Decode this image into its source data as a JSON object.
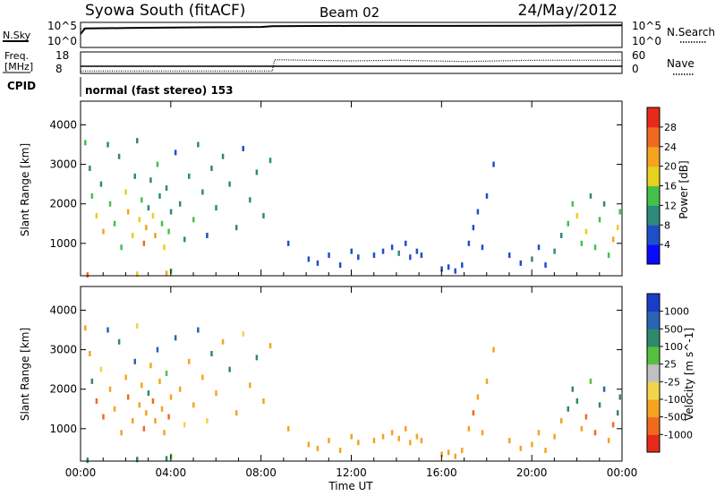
{
  "header": {
    "station": "Syowa South (fitACF)",
    "beam": "Beam 02",
    "date": "24/May/2012"
  },
  "sky_panel": {
    "left_label": "N.Sky",
    "right_label": "N.Search",
    "tick_top_left": "10^5",
    "tick_bottom_left": "10^0",
    "tick_top_right": "10^5",
    "tick_bottom_right": "10^0"
  },
  "freq_panel": {
    "left_label_1": "Freq.",
    "left_label_2": "[MHz]",
    "right_label": "Nave",
    "tick_top_left": "18",
    "tick_bottom_left": "8",
    "tick_top_right": "60",
    "tick_bottom_right": "0"
  },
  "cpid": {
    "label": "CPID",
    "value": "normal (fast stereo) 153"
  },
  "x_axis": {
    "label": "Time UT",
    "ticks": [
      "00:00",
      "04:00",
      "08:00",
      "12:00",
      "16:00",
      "20:00",
      "00:00"
    ]
  },
  "power_panel": {
    "ylabel": "Slant Range [km]",
    "yticks": [
      "1000",
      "2000",
      "3000",
      "4000"
    ],
    "colorbar_label": "Power [dB]",
    "colorbar_ticks": [
      "4",
      "8",
      "12",
      "16",
      "20",
      "24",
      "28"
    ],
    "colorbar_colors": [
      "#0a0aff",
      "#1f4fc8",
      "#2d8a7d",
      "#45c04a",
      "#e6d020",
      "#f5a321",
      "#ef6a1f",
      "#e52a1a"
    ]
  },
  "velocity_panel": {
    "ylabel": "Slant Range [km]",
    "yticks": [
      "1000",
      "2000",
      "3000",
      "4000"
    ],
    "colorbar_label": "Velocity [m s^-1]",
    "colorbar_ticks": [
      "1000",
      "500",
      "100",
      "25",
      "-25",
      "-100",
      "-500",
      "-1000"
    ],
    "colorbar_colors": [
      "#1a3cc8",
      "#2a64b4",
      "#2d8a6a",
      "#57c040",
      "#c0c0c0",
      "#f2d44a",
      "#f5a321",
      "#ef6a1f",
      "#e52a1a"
    ]
  },
  "chart_data": [
    {
      "type": "line",
      "name": "sky_noise_and_search_noise",
      "x_unit": "hours UT",
      "xlim": [
        0,
        24
      ],
      "series": [
        {
          "name": "N.Sky",
          "x": [
            0,
            0.2,
            2,
            4,
            6,
            8,
            8.5,
            12,
            16,
            20,
            24
          ],
          "y": [
            0.55,
            0.8,
            0.82,
            0.84,
            0.86,
            0.87,
            0.91,
            0.92,
            0.92,
            0.93,
            0.95
          ]
        },
        {
          "name": "N.Search",
          "x": [
            0,
            0.2,
            4,
            8,
            8.5,
            12,
            16,
            20,
            24
          ],
          "y": [
            0.78,
            0.8,
            0.83,
            0.86,
            0.9,
            0.9,
            0.92,
            0.93,
            0.95
          ]
        }
      ]
    },
    {
      "type": "line",
      "name": "frequency_and_nave",
      "x_unit": "hours UT",
      "xlim": [
        0,
        24
      ],
      "series": [
        {
          "name": "Freq. [MHz]",
          "x": [
            0,
            24
          ],
          "y": [
            11,
            11
          ]
        },
        {
          "name": "Nave",
          "x": [
            0,
            8.5,
            8.6,
            12,
            14,
            17,
            18.5,
            20,
            24
          ],
          "y": [
            2,
            2,
            40,
            36,
            38,
            34,
            36,
            38,
            38
          ]
        }
      ]
    },
    {
      "type": "heatmap",
      "name": "power_rti",
      "x_unit": "hours UT",
      "y_unit": "km",
      "xlim": [
        0,
        24
      ],
      "ylim": [
        180,
        4600
      ],
      "clim": [
        0,
        30
      ],
      "points": [
        [
          0.2,
          3550,
          12
        ],
        [
          0.4,
          2900,
          10
        ],
        [
          0.5,
          2200,
          14
        ],
        [
          0.7,
          1700,
          18
        ],
        [
          0.9,
          2500,
          9
        ],
        [
          1.0,
          1300,
          20
        ],
        [
          1.2,
          3500,
          8
        ],
        [
          1.3,
          2000,
          15
        ],
        [
          1.5,
          1500,
          12
        ],
        [
          1.7,
          3200,
          10
        ],
        [
          1.8,
          900,
          14
        ],
        [
          2.0,
          2300,
          17
        ],
        [
          2.1,
          1800,
          22
        ],
        [
          2.3,
          1200,
          16
        ],
        [
          2.4,
          2700,
          11
        ],
        [
          2.5,
          3600,
          9
        ],
        [
          2.6,
          1600,
          19
        ],
        [
          2.7,
          2100,
          13
        ],
        [
          2.8,
          1000,
          24
        ],
        [
          2.9,
          1400,
          20
        ],
        [
          3.0,
          1900,
          11
        ],
        [
          3.1,
          2600,
          8
        ],
        [
          3.2,
          1700,
          17
        ],
        [
          3.3,
          1200,
          21
        ],
        [
          3.4,
          3000,
          12
        ],
        [
          3.5,
          2200,
          10
        ],
        [
          3.6,
          1500,
          15
        ],
        [
          3.7,
          900,
          18
        ],
        [
          3.8,
          2400,
          9
        ],
        [
          3.9,
          1300,
          13
        ],
        [
          4.0,
          1800,
          10
        ],
        [
          4.2,
          3300,
          7
        ],
        [
          4.4,
          2000,
          11
        ],
        [
          4.6,
          1100,
          8
        ],
        [
          4.8,
          2700,
          9
        ],
        [
          5.0,
          1600,
          12
        ],
        [
          5.2,
          3500,
          8
        ],
        [
          5.4,
          2300,
          10
        ],
        [
          5.6,
          1200,
          7
        ],
        [
          5.8,
          2900,
          9
        ],
        [
          6.0,
          1900,
          11
        ],
        [
          6.3,
          3200,
          8
        ],
        [
          6.6,
          2500,
          10
        ],
        [
          6.9,
          1400,
          9
        ],
        [
          7.2,
          3400,
          7
        ],
        [
          7.5,
          2100,
          8
        ],
        [
          7.8,
          2800,
          10
        ],
        [
          8.1,
          1700,
          9
        ],
        [
          8.4,
          3100,
          8
        ],
        [
          0.3,
          200,
          26
        ],
        [
          2.5,
          220,
          18
        ],
        [
          3.8,
          240,
          22
        ],
        [
          4.0,
          300,
          14
        ],
        [
          9.2,
          1000,
          6
        ],
        [
          10.1,
          600,
          5
        ],
        [
          10.5,
          500,
          4
        ],
        [
          11.0,
          700,
          6
        ],
        [
          11.5,
          450,
          5
        ],
        [
          12.0,
          800,
          7
        ],
        [
          12.3,
          650,
          6
        ],
        [
          13.0,
          700,
          5
        ],
        [
          13.4,
          800,
          6
        ],
        [
          13.8,
          900,
          7
        ],
        [
          14.1,
          750,
          8
        ],
        [
          14.4,
          1000,
          6
        ],
        [
          14.6,
          650,
          5
        ],
        [
          14.9,
          800,
          6
        ],
        [
          15.1,
          700,
          7
        ],
        [
          16.0,
          350,
          6
        ],
        [
          16.3,
          400,
          5
        ],
        [
          16.6,
          300,
          7
        ],
        [
          16.9,
          450,
          6
        ],
        [
          17.2,
          1000,
          5
        ],
        [
          17.4,
          1400,
          6
        ],
        [
          17.6,
          1800,
          7
        ],
        [
          17.8,
          900,
          5
        ],
        [
          18.0,
          2200,
          6
        ],
        [
          18.3,
          3000,
          5
        ],
        [
          19.0,
          700,
          7
        ],
        [
          19.5,
          500,
          6
        ],
        [
          20.0,
          600,
          8
        ],
        [
          20.3,
          900,
          7
        ],
        [
          20.6,
          450,
          6
        ],
        [
          21.0,
          800,
          9
        ],
        [
          21.3,
          1200,
          10
        ],
        [
          21.6,
          1500,
          12
        ],
        [
          21.8,
          2000,
          14
        ],
        [
          22.0,
          1700,
          16
        ],
        [
          22.2,
          1000,
          13
        ],
        [
          22.4,
          1300,
          18
        ],
        [
          22.6,
          2200,
          11
        ],
        [
          22.8,
          900,
          15
        ],
        [
          23.0,
          1600,
          12
        ],
        [
          23.2,
          2000,
          9
        ],
        [
          23.4,
          700,
          14
        ],
        [
          23.6,
          1100,
          22
        ],
        [
          23.8,
          1400,
          19
        ],
        [
          23.9,
          1800,
          13
        ]
      ]
    },
    {
      "type": "heatmap",
      "name": "velocity_rti",
      "x_unit": "hours UT",
      "y_unit": "km",
      "xlim": [
        0,
        24
      ],
      "ylim": [
        180,
        4600
      ],
      "clim": [
        -1000,
        1000
      ],
      "points": [
        [
          0.2,
          3550,
          -150
        ],
        [
          0.4,
          2900,
          -300
        ],
        [
          0.5,
          2200,
          200
        ],
        [
          0.7,
          1700,
          -600
        ],
        [
          0.9,
          2500,
          -80
        ],
        [
          1.0,
          1300,
          -700
        ],
        [
          1.2,
          3500,
          600
        ],
        [
          1.3,
          2000,
          -200
        ],
        [
          1.5,
          1500,
          -400
        ],
        [
          1.7,
          3200,
          120
        ],
        [
          1.8,
          900,
          -500
        ],
        [
          2.0,
          2300,
          -300
        ],
        [
          2.1,
          1800,
          -900
        ],
        [
          2.3,
          1200,
          -150
        ],
        [
          2.4,
          2700,
          800
        ],
        [
          2.5,
          3600,
          -60
        ],
        [
          2.6,
          1600,
          -500
        ],
        [
          2.7,
          2100,
          -250
        ],
        [
          2.8,
          1000,
          -800
        ],
        [
          2.9,
          1400,
          -400
        ],
        [
          3.0,
          1900,
          300
        ],
        [
          3.1,
          2600,
          -120
        ],
        [
          3.2,
          1700,
          -700
        ],
        [
          3.3,
          1200,
          -350
        ],
        [
          3.4,
          3000,
          900
        ],
        [
          3.5,
          2200,
          -180
        ],
        [
          3.6,
          1500,
          -450
        ],
        [
          3.7,
          900,
          -220
        ],
        [
          3.8,
          2400,
          60
        ],
        [
          3.9,
          1300,
          -650
        ],
        [
          4.0,
          1800,
          -300
        ],
        [
          4.2,
          3300,
          700
        ],
        [
          4.4,
          2000,
          -150
        ],
        [
          4.6,
          1100,
          -60
        ],
        [
          4.8,
          2700,
          -400
        ],
        [
          5.0,
          1600,
          -250
        ],
        [
          5.2,
          3500,
          900
        ],
        [
          5.4,
          2300,
          -120
        ],
        [
          5.6,
          1200,
          -80
        ],
        [
          5.8,
          2900,
          400
        ],
        [
          6.0,
          1900,
          -300
        ],
        [
          6.3,
          3200,
          -200
        ],
        [
          6.6,
          2500,
          150
        ],
        [
          6.9,
          1400,
          -500
        ],
        [
          7.2,
          3400,
          -100
        ],
        [
          7.5,
          2100,
          -300
        ],
        [
          7.8,
          2800,
          200
        ],
        [
          8.1,
          1700,
          -150
        ],
        [
          8.4,
          3100,
          -250
        ],
        [
          0.3,
          200,
          150
        ],
        [
          2.5,
          220,
          100
        ],
        [
          3.8,
          240,
          120
        ],
        [
          4.0,
          300,
          60
        ],
        [
          9.2,
          1000,
          -200
        ],
        [
          10.1,
          600,
          -250
        ],
        [
          10.5,
          500,
          -300
        ],
        [
          11.0,
          700,
          -200
        ],
        [
          11.5,
          450,
          -250
        ],
        [
          12.0,
          800,
          -300
        ],
        [
          12.3,
          650,
          -200
        ],
        [
          13.0,
          700,
          -300
        ],
        [
          13.4,
          800,
          -350
        ],
        [
          13.8,
          900,
          -250
        ],
        [
          14.1,
          750,
          -400
        ],
        [
          14.4,
          1000,
          -300
        ],
        [
          14.6,
          650,
          -250
        ],
        [
          14.9,
          800,
          -300
        ],
        [
          15.1,
          700,
          -200
        ],
        [
          16.0,
          350,
          -250
        ],
        [
          16.3,
          400,
          -300
        ],
        [
          16.6,
          300,
          -200
        ],
        [
          16.9,
          450,
          -250
        ],
        [
          17.2,
          1000,
          -300
        ],
        [
          17.4,
          1400,
          -700
        ],
        [
          17.6,
          1800,
          -200
        ],
        [
          17.8,
          900,
          -250
        ],
        [
          18.0,
          2200,
          -150
        ],
        [
          18.3,
          3000,
          -200
        ],
        [
          19.0,
          700,
          -300
        ],
        [
          19.5,
          500,
          -250
        ],
        [
          20.0,
          600,
          -300
        ],
        [
          20.3,
          900,
          -250
        ],
        [
          20.6,
          450,
          -200
        ],
        [
          21.0,
          800,
          -300
        ],
        [
          21.3,
          1200,
          -250
        ],
        [
          21.6,
          1500,
          150
        ],
        [
          21.8,
          2000,
          200
        ],
        [
          22.0,
          1700,
          120
        ],
        [
          22.2,
          1000,
          -300
        ],
        [
          22.4,
          1300,
          -600
        ],
        [
          22.6,
          2200,
          80
        ],
        [
          22.8,
          900,
          -700
        ],
        [
          23.0,
          1600,
          300
        ],
        [
          23.2,
          2000,
          600
        ],
        [
          23.4,
          700,
          -500
        ],
        [
          23.6,
          1100,
          -800
        ],
        [
          23.8,
          1400,
          200
        ],
        [
          23.9,
          1800,
          400
        ]
      ]
    }
  ]
}
